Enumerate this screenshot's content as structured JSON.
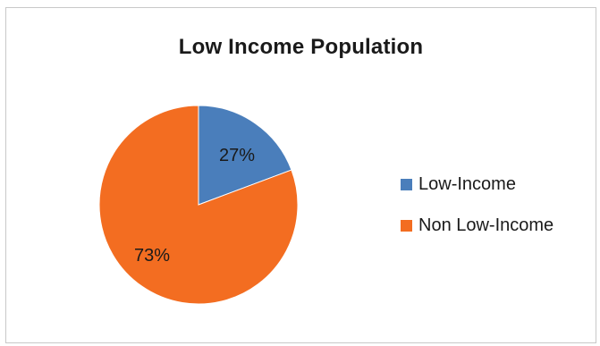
{
  "chart_data": {
    "type": "pie",
    "title": "Low Income Population",
    "slices": [
      {
        "name": "Low-Income",
        "value": 27,
        "label": "27%",
        "color": "#4a7ebb"
      },
      {
        "name": "Non Low-Income",
        "value": 73,
        "label": "73%",
        "color": "#f36d21"
      }
    ],
    "legend_position": "right"
  }
}
